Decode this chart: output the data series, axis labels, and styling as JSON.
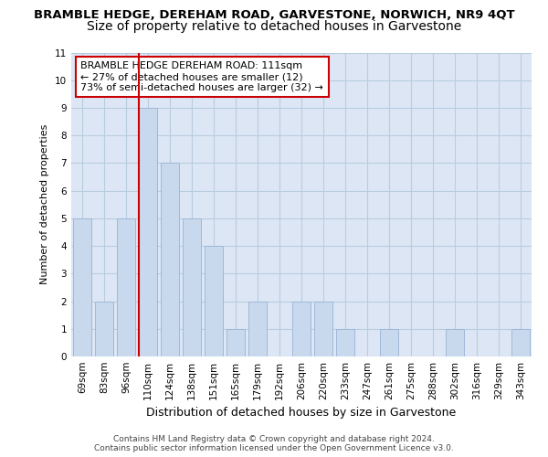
{
  "title": "BRAMBLE HEDGE, DEREHAM ROAD, GARVESTONE, NORWICH, NR9 4QT",
  "subtitle": "Size of property relative to detached houses in Garvestone",
  "xlabel": "Distribution of detached houses by size in Garvestone",
  "ylabel": "Number of detached properties",
  "categories": [
    "69sqm",
    "83sqm",
    "96sqm",
    "110sqm",
    "124sqm",
    "138sqm",
    "151sqm",
    "165sqm",
    "179sqm",
    "192sqm",
    "206sqm",
    "220sqm",
    "233sqm",
    "247sqm",
    "261sqm",
    "275sqm",
    "288sqm",
    "302sqm",
    "316sqm",
    "329sqm",
    "343sqm"
  ],
  "values": [
    5,
    2,
    5,
    9,
    7,
    5,
    4,
    1,
    2,
    0,
    2,
    2,
    1,
    0,
    1,
    0,
    0,
    1,
    0,
    0,
    1
  ],
  "bar_color": "#c9d9ed",
  "bar_edgecolor": "#a0b8d8",
  "vline_x_index": 3,
  "vline_color": "#cc0000",
  "annotation_text": "BRAMBLE HEDGE DEREHAM ROAD: 111sqm\n← 27% of detached houses are smaller (12)\n73% of semi-detached houses are larger (32) →",
  "annotation_box_color": "#ffffff",
  "annotation_box_edgecolor": "#cc0000",
  "ylim": [
    0,
    11
  ],
  "yticks": [
    0,
    1,
    2,
    3,
    4,
    5,
    6,
    7,
    8,
    9,
    10,
    11
  ],
  "grid_color": "#b8cde0",
  "background_color": "#dce6f5",
  "footer_line1": "Contains HM Land Registry data © Crown copyright and database right 2024.",
  "footer_line2": "Contains public sector information licensed under the Open Government Licence v3.0.",
  "title_fontsize": 9.5,
  "subtitle_fontsize": 10,
  "xlabel_fontsize": 9,
  "ylabel_fontsize": 8,
  "tick_fontsize": 7.5,
  "annotation_fontsize": 8,
  "footer_fontsize": 6.5
}
